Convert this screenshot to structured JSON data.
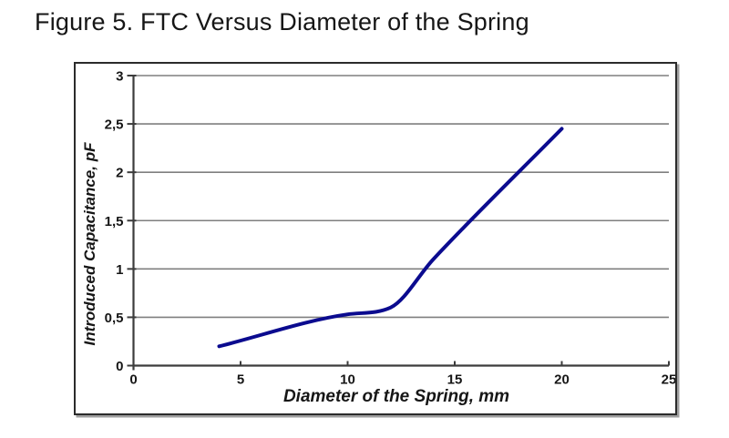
{
  "figure": {
    "title": "Figure 5. FTC Versus Diameter of the Spring"
  },
  "chart_data": {
    "type": "line",
    "xlabel": "Diameter of the Spring, mm",
    "ylabel": "Introduced Capacitance, pF",
    "xlim": [
      0,
      25
    ],
    "ylim": [
      0,
      3
    ],
    "grid": "horizontal",
    "legend": "none",
    "decimal_style": "comma",
    "x_ticks": {
      "values": [
        0,
        5,
        10,
        15,
        20,
        25
      ],
      "labels": [
        "0",
        "5",
        "10",
        "15",
        "20",
        "25"
      ]
    },
    "y_ticks": {
      "values": [
        0,
        0.5,
        1,
        1.5,
        2,
        2.5,
        3
      ],
      "labels": [
        "0",
        "0,5",
        "1",
        "1,5",
        "2",
        "2,5",
        "3"
      ]
    },
    "series": [
      {
        "color": "#0b0b8f",
        "line_width": 4,
        "smooth": true,
        "points": [
          {
            "x": 4,
            "y": 0.2
          },
          {
            "x": 10,
            "y": 0.53
          },
          {
            "x": 12,
            "y": 0.6
          },
          {
            "x": 14,
            "y": 1.1
          },
          {
            "x": 20,
            "y": 2.45
          }
        ]
      }
    ]
  },
  "colors": {
    "line": "#0b0b8f",
    "gridline": "#7f7f7f",
    "axis": "#3c3c3c",
    "border": "#2b2b2b",
    "shadow": "#9e9e9e",
    "text": "#161616",
    "background": "#ffffff"
  }
}
